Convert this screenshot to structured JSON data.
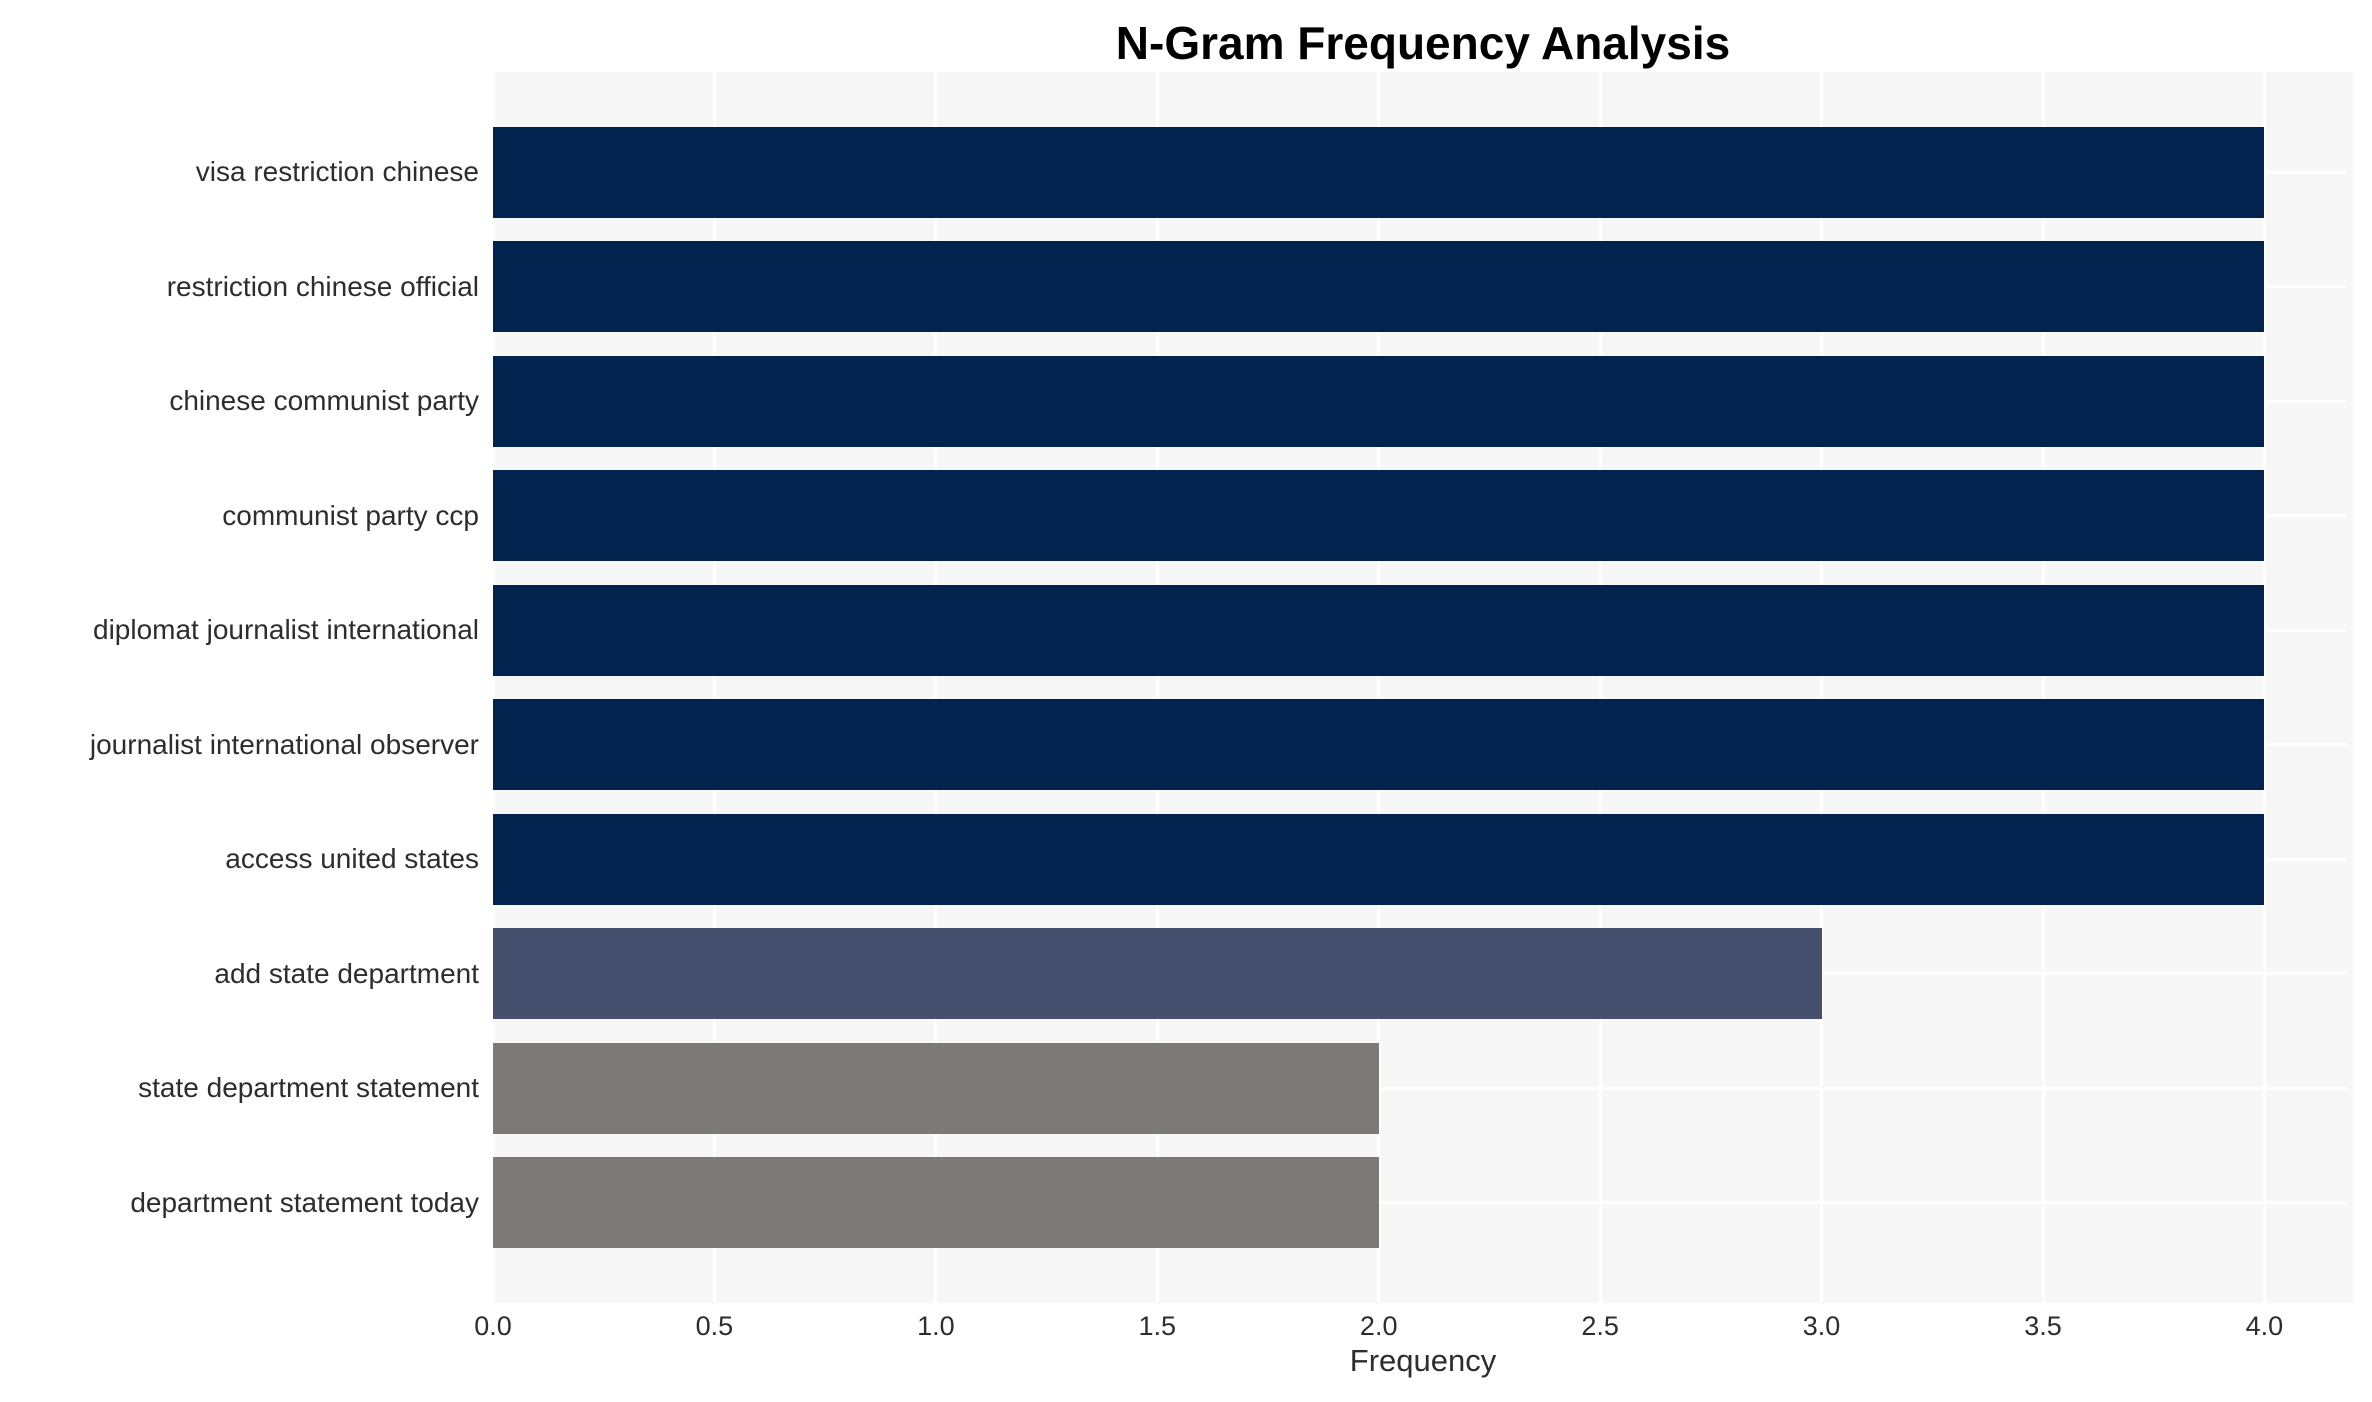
{
  "chart_data": {
    "type": "bar",
    "orientation": "horizontal",
    "title": "N-Gram Frequency Analysis",
    "xlabel": "Frequency",
    "ylabel": "",
    "categories": [
      "visa restriction chinese",
      "restriction chinese official",
      "chinese communist party",
      "communist party ccp",
      "diplomat journalist international",
      "journalist international observer",
      "access united states",
      "add state department",
      "state department statement",
      "department statement today"
    ],
    "values": [
      4,
      4,
      4,
      4,
      4,
      4,
      4,
      3,
      2,
      2
    ],
    "bar_colors": [
      "#02234d",
      "#02234d",
      "#02234d",
      "#02234d",
      "#02234d",
      "#02234d",
      "#02234d",
      "#454f6e",
      "#7b7a76",
      "#7b7a76"
    ],
    "xlim": [
      0,
      4.2
    ],
    "xtick_values": [
      0,
      0.5,
      1,
      1.5,
      2,
      2.5,
      3,
      3.5,
      4
    ],
    "xtick_labels": [
      "0.0",
      "0.5",
      "1.0",
      "1.5",
      "2.0",
      "2.5",
      "3.0",
      "3.5",
      "4.0"
    ],
    "grid": true,
    "legend": false,
    "plot_background": "#f7f7f7",
    "grid_color": "#ffffff"
  }
}
